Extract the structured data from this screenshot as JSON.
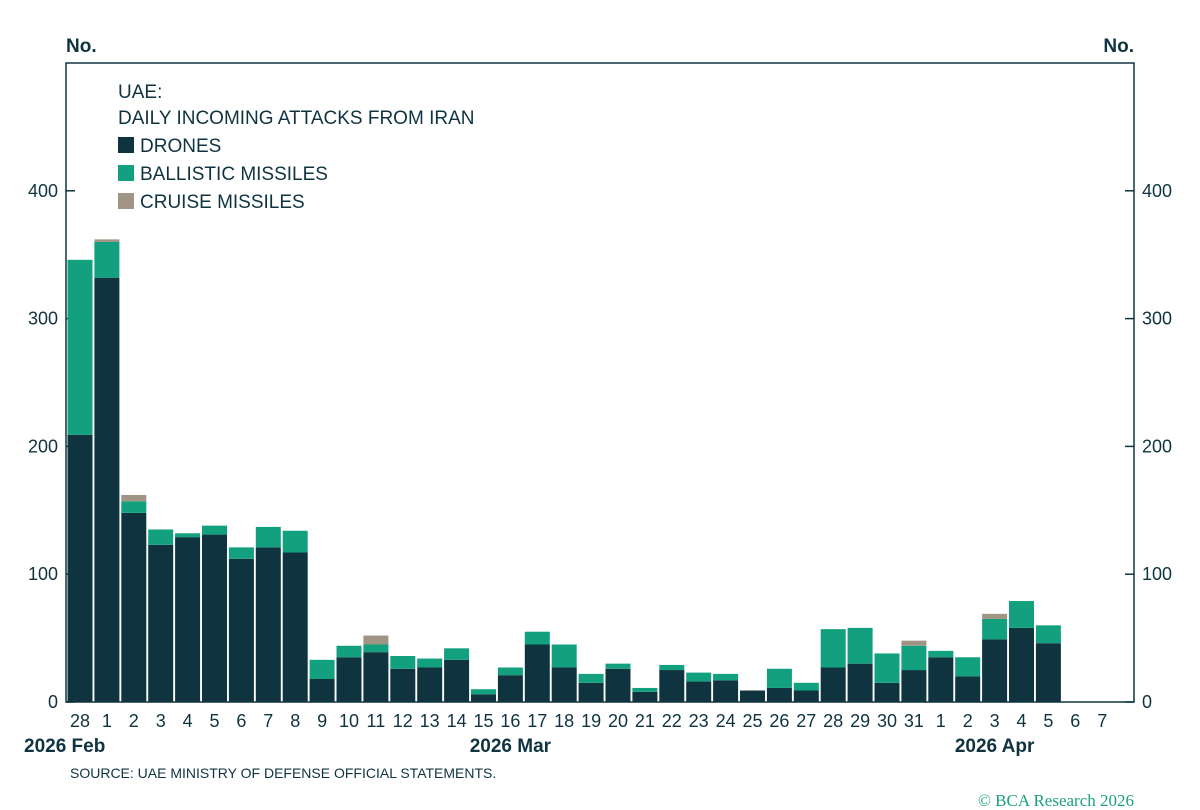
{
  "chart_data": {
    "type": "bar",
    "stacked": true,
    "title_lines": [
      "UAE:",
      "DAILY INCOMING ATTACKS FROM IRAN"
    ],
    "ylabel_left": "No.",
    "ylabel_right": "No.",
    "ylim": [
      0,
      500
    ],
    "yticks": [
      0,
      100,
      200,
      300,
      400
    ],
    "yticks_labeled": [
      0,
      100,
      200,
      300,
      400
    ],
    "categories": [
      "28",
      "1",
      "2",
      "3",
      "4",
      "5",
      "6",
      "7",
      "8",
      "9",
      "10",
      "11",
      "12",
      "13",
      "14",
      "15",
      "16",
      "17",
      "18",
      "19",
      "20",
      "21",
      "22",
      "23",
      "24",
      "25",
      "26",
      "27",
      "28",
      "29",
      "30",
      "31",
      "1",
      "2",
      "3",
      "4",
      "5",
      "6",
      "7"
    ],
    "month_labels": [
      {
        "text": "2026 Feb",
        "index": 0
      },
      {
        "text": "2026 Mar",
        "index": 16
      },
      {
        "text": "2026 Apr",
        "index": 34
      }
    ],
    "legend_placement": "top-left",
    "series": [
      {
        "name": "DRONES",
        "color": "#0f3440",
        "values": [
          209,
          332,
          148,
          123,
          129,
          131,
          112,
          121,
          117,
          18,
          35,
          39,
          26,
          27,
          33,
          6,
          21,
          45,
          27,
          15,
          26,
          8,
          25,
          16,
          17,
          9,
          11,
          9,
          27,
          30,
          15,
          25,
          35,
          20,
          49,
          58,
          46,
          0,
          0
        ]
      },
      {
        "name": "BALLISTIC MISSILES",
        "color": "#13a07e",
        "values": [
          137,
          28,
          9,
          12,
          3,
          7,
          9,
          16,
          17,
          15,
          9,
          6,
          10,
          7,
          9,
          4,
          6,
          10,
          18,
          7,
          4,
          3,
          4,
          7,
          5,
          0,
          15,
          6,
          30,
          28,
          23,
          19,
          5,
          15,
          16,
          21,
          14,
          0,
          0
        ]
      },
      {
        "name": "CRUISE MISSILES",
        "color": "#a09585",
        "values": [
          0,
          2,
          5,
          0,
          0,
          0,
          0,
          0,
          0,
          0,
          0,
          7,
          0,
          0,
          0,
          0,
          0,
          0,
          0,
          0,
          0,
          0,
          0,
          0,
          0,
          0,
          0,
          0,
          0,
          0,
          0,
          4,
          0,
          0,
          4,
          0,
          0,
          0,
          0
        ]
      }
    ],
    "source": "SOURCE: UAE MINISTRY OF DEFENSE OFFICIAL STATEMENTS.",
    "copyright": "© BCA Research 2026"
  }
}
